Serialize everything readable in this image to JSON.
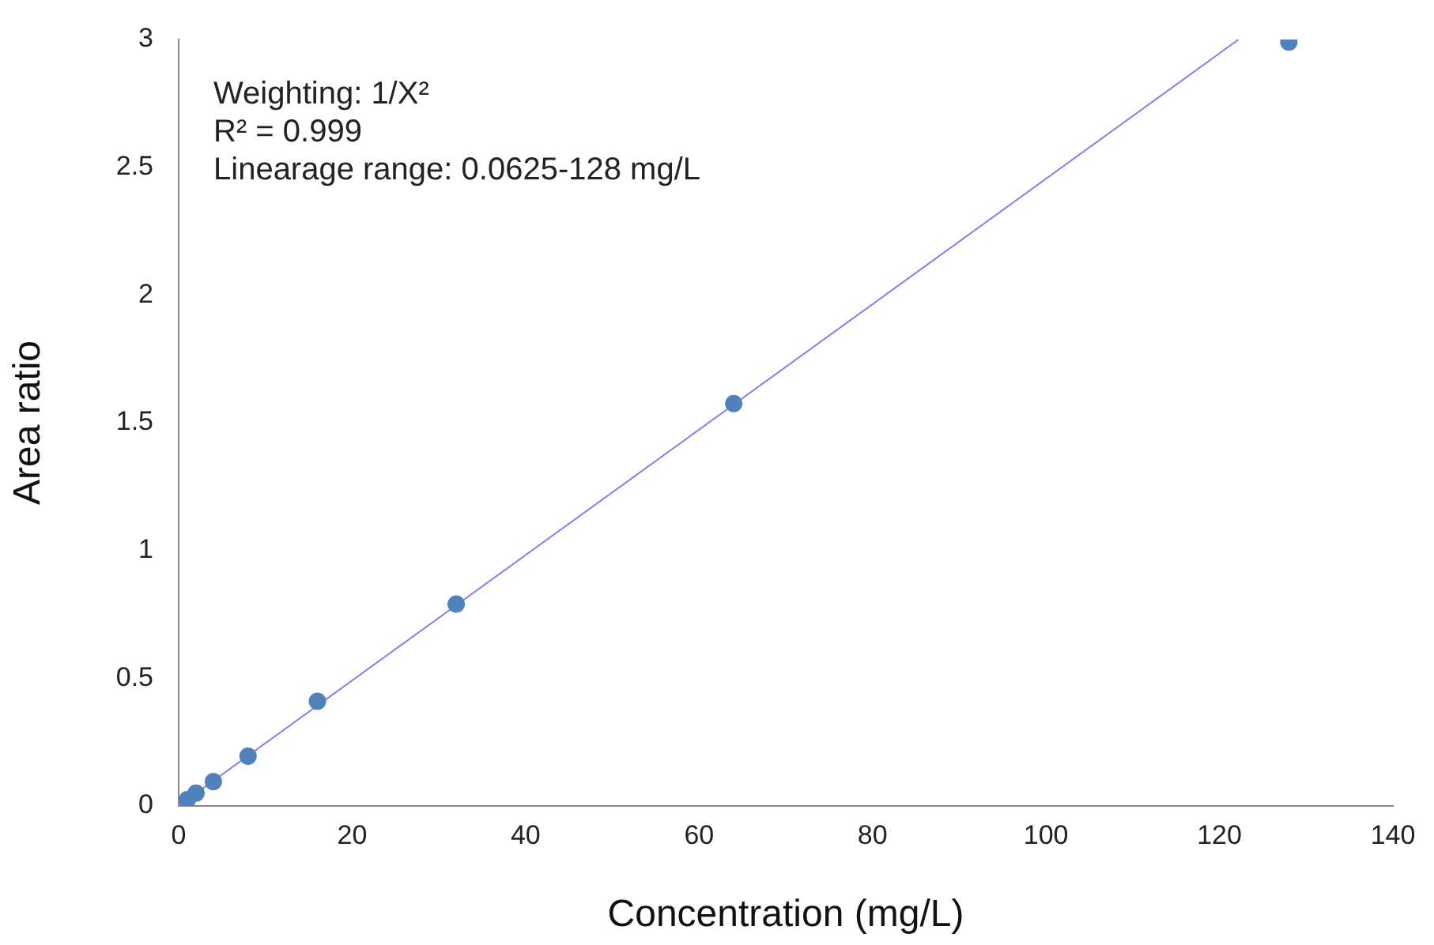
{
  "chart_data": {
    "type": "scatter",
    "xlabel": "Concentration (mg/L)",
    "ylabel": "Area ratio",
    "xlim": [
      0,
      140
    ],
    "xticks": [
      0,
      20,
      40,
      60,
      80,
      100,
      120,
      140
    ],
    "ylim": [
      0,
      3
    ],
    "yticks": [
      0,
      0.5,
      1,
      1.5,
      2,
      2.5,
      3
    ],
    "grid": false,
    "legend": false,
    "annotations": [
      "Weighting: 1/X²",
      "R² = 0.999",
      "Linearage range: 0.0625-128 mg/L"
    ],
    "series": [
      {
        "marker": "circle",
        "color": "#4f81bd",
        "x": [
          1,
          2,
          4,
          8,
          16,
          32,
          64,
          128
        ],
        "values": [
          0.025,
          0.05,
          0.095,
          0.195,
          0.41,
          0.79,
          1.575,
          2.99
        ]
      },
      {
        "type": "line",
        "color": "#8080f0",
        "x": [
          0,
          122.2
        ],
        "values": [
          0,
          3
        ]
      }
    ]
  }
}
